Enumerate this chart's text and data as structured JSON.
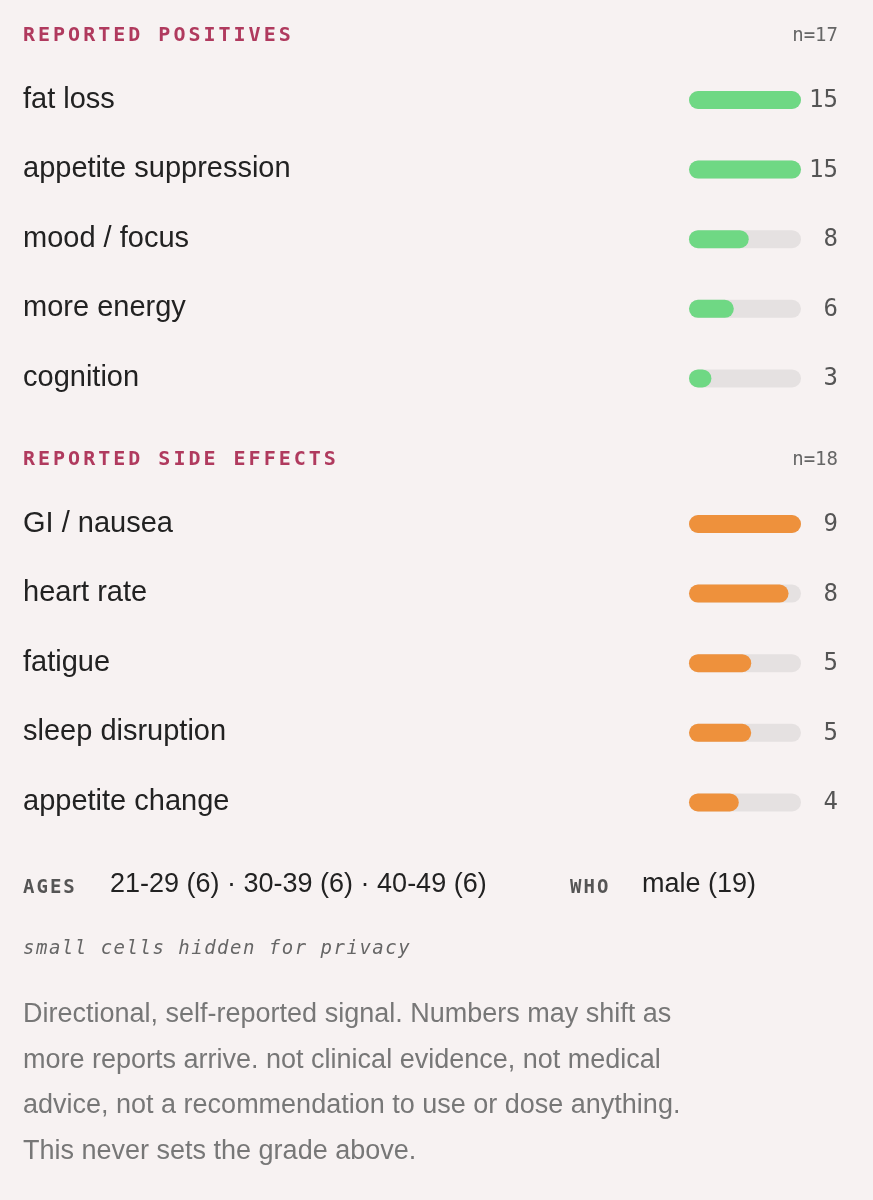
{
  "chart_data": [
    {
      "type": "bar",
      "orientation": "horizontal",
      "title": "REPORTED POSITIVES",
      "annotations": [
        "n=17"
      ],
      "categories": [
        "fat loss",
        "appetite suppression",
        "mood / focus",
        "more energy",
        "cognition"
      ],
      "values": [
        15,
        15,
        8,
        6,
        3
      ],
      "color": "#6fd884",
      "data_labels": true
    },
    {
      "type": "bar",
      "orientation": "horizontal",
      "title": "REPORTED SIDE EFFECTS",
      "annotations": [
        "n=18"
      ],
      "categories": [
        "GI / nausea",
        "heart rate",
        "fatigue",
        "sleep disruption",
        "appetite change"
      ],
      "values": [
        9,
        8,
        5,
        5,
        4
      ],
      "color": "#ee913c",
      "data_labels": true
    },
    {
      "type": "other",
      "annotations": [
        "AGES",
        "21-29 (6) · 30-39 (6) · 40-49 (6)",
        "WHO",
        "male (19)",
        "small cells hidden for privacy",
        "Directional, self-reported signal. Numbers may shift as more reports arrive. not clinical evidence, not medical advice, not a recommendation to use or dose anything. This never sets the grade above."
      ]
    }
  ]
}
